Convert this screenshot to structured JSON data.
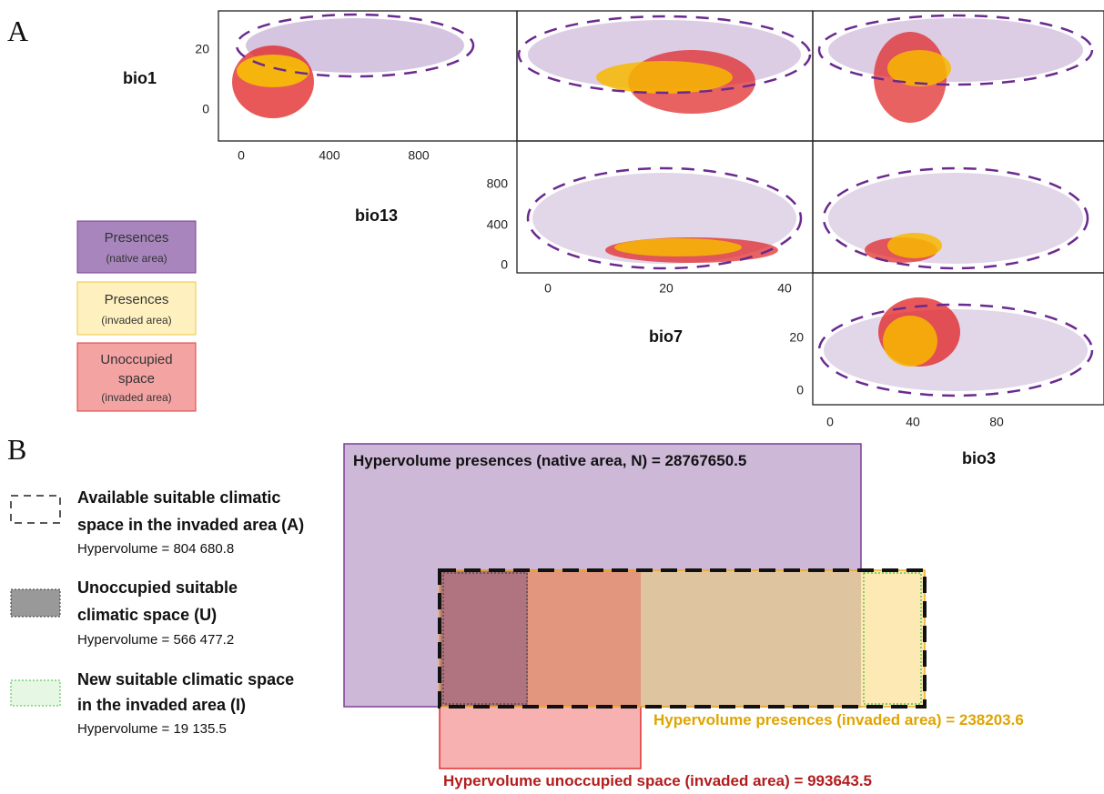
{
  "panel_a": {
    "label": "A",
    "variables": [
      "bio1",
      "bio13",
      "bio7",
      "bio3"
    ],
    "plots": [
      {
        "yticks": [
          20,
          0
        ],
        "xticks": [
          0,
          400,
          800
        ]
      },
      {
        "yticks": [
          800,
          400,
          0
        ],
        "xticks": [
          0,
          20,
          40
        ]
      },
      {
        "yticks": [
          20,
          0
        ],
        "xticks": [
          0,
          40,
          80
        ]
      }
    ],
    "legend": [
      {
        "lines": [
          "Presences"
        ],
        "note": "(native area)"
      },
      {
        "lines": [
          "Presences"
        ],
        "note": "(invaded area)"
      },
      {
        "lines": [
          "Unoccupied",
          "space"
        ],
        "note": "(invaded area)"
      }
    ]
  },
  "panel_b": {
    "label": "B",
    "legend": [
      {
        "lines": [
          "Available suitable climatic",
          "space in the invaded area (A)"
        ],
        "hypervolume": "Hypervolume = 804 680.8"
      },
      {
        "lines": [
          "Unoccupied suitable",
          "climatic space (U)"
        ],
        "hypervolume": "Hypervolume = 566 477.2"
      },
      {
        "lines": [
          "New suitable climatic space",
          "in the invaded area (I)"
        ],
        "hypervolume": "Hypervolume = 19 135.5"
      }
    ],
    "diagram": {
      "native": "Hypervolume presences (native area, N) = 28767650.5",
      "invaded": "Hypervolume presences (invaded area) = 238203.6",
      "unoccupied": "Hypervolume unoccupied space (invaded area) = 993643.5"
    }
  }
}
